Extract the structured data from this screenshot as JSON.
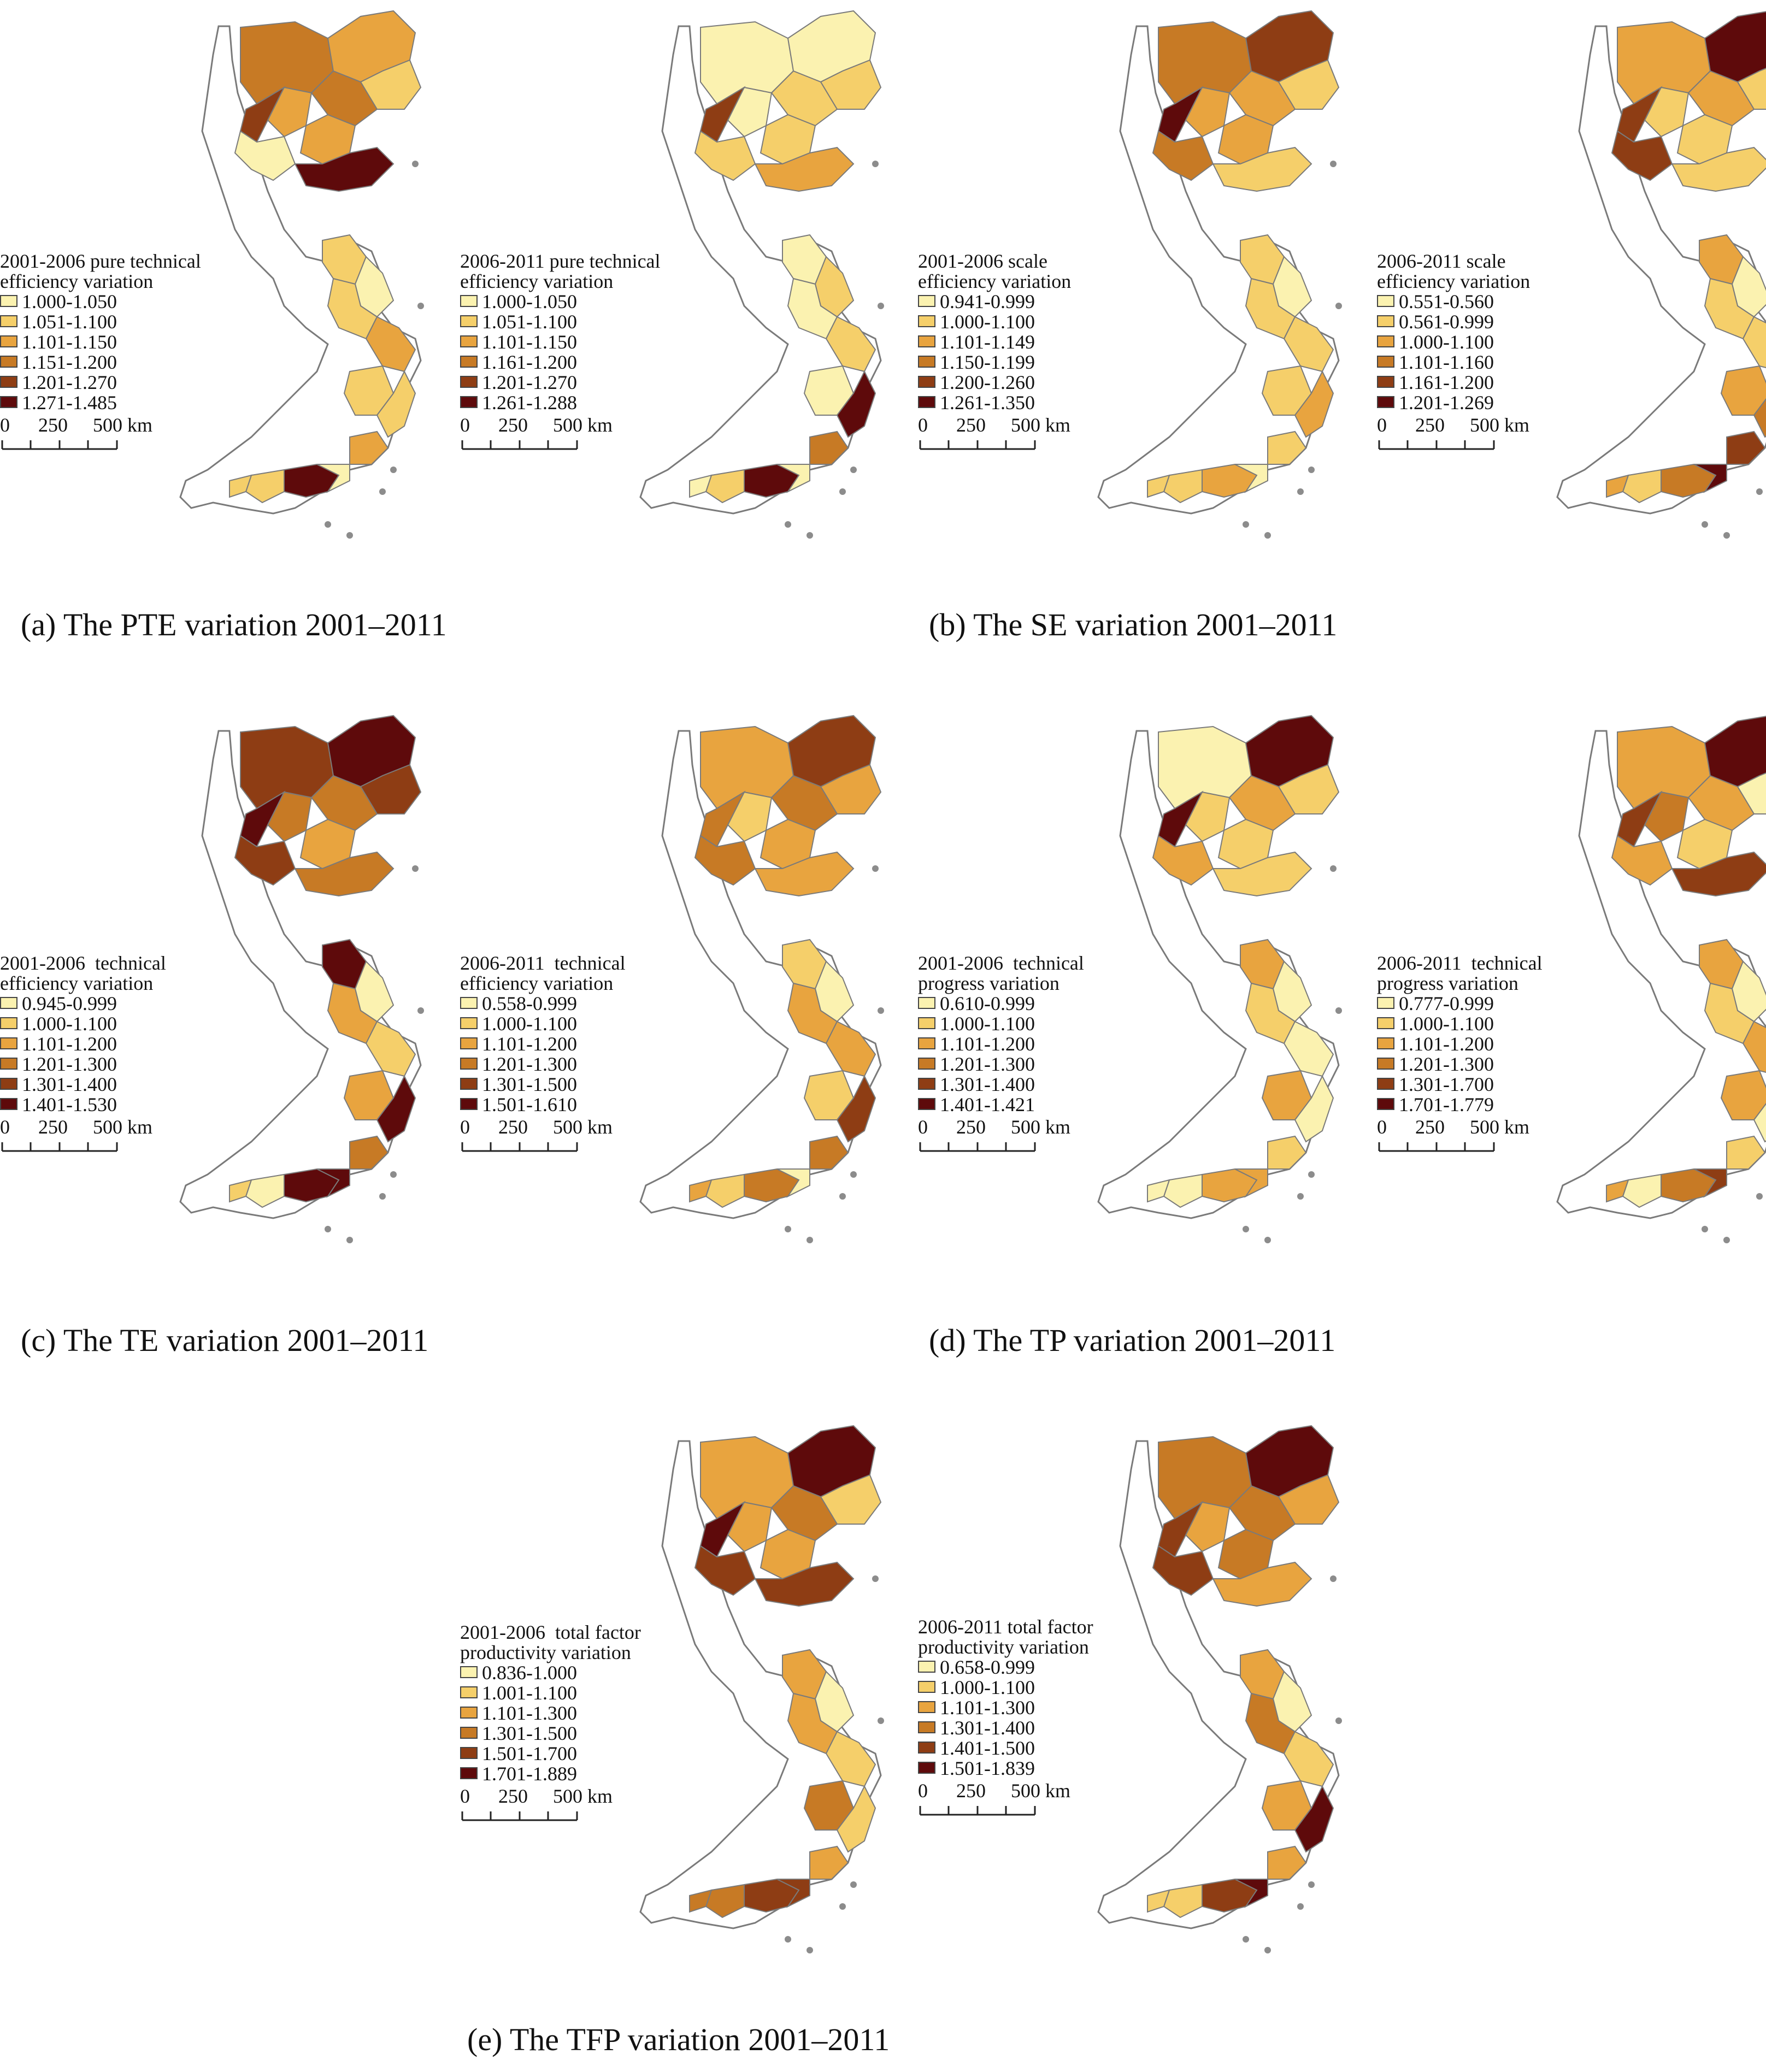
{
  "colors": {
    "c1": "#fbf2b0",
    "c2": "#f5cf6a",
    "c3": "#e8a43f",
    "c4": "#c77a25",
    "c5": "#8e3d14",
    "c6": "#5e0a0b",
    "outline": "#7a7a7a",
    "island": "#8c8c8c"
  },
  "scalebar": {
    "t0": "0",
    "t1": "250",
    "t2": "500 km"
  },
  "captions": {
    "a": "(a) The PTE variation 2001–2011",
    "b": "(b) The SE variation 2001–2011",
    "c": "(c) The TE variation 2001–2011",
    "d": "(d) The TP variation 2001–2011",
    "e": "(e) The TFP variation 2001–2011"
  },
  "maps": [
    {
      "title1": "2001-2006 pure technical",
      "title2": "efficiency variation",
      "classes": [
        "1.000-1.050",
        "1.051-1.100",
        "1.101-1.150",
        "1.151-1.200",
        "1.201-1.270",
        "1.271-1.485"
      ],
      "fill": [
        "c4",
        "c3",
        "c5",
        "c3",
        "c2",
        "c4",
        "c1",
        "c3",
        "c6",
        "c2",
        "c1",
        "c2",
        "c3",
        "c2",
        "c2",
        "c3",
        "c6",
        "c2",
        "c1",
        "c2"
      ]
    },
    {
      "title1": "2006-2011 pure technical",
      "title2": "efficiency variation",
      "classes": [
        "1.000-1.050",
        "1.051-1.100",
        "1.101-1.150",
        "1.161-1.200",
        "1.201-1.270",
        "1.261-1.288"
      ],
      "fill": [
        "c1",
        "c1",
        "c5",
        "c1",
        "c2",
        "c2",
        "c2",
        "c2",
        "c3",
        "c1",
        "c2",
        "c1",
        "c2",
        "c1",
        "c6",
        "c4",
        "c6",
        "c2",
        "c1",
        "c1"
      ]
    },
    {
      "title1": "2001-2006 scale",
      "title2": "efficiency variation",
      "classes": [
        "0.941-0.999",
        "1.000-1.100",
        "1.101-1.149",
        "1.150-1.199",
        "1.200-1.260",
        "1.261-1.350"
      ],
      "fill": [
        "c4",
        "c3",
        "c6",
        "c5",
        "c2",
        "c3",
        "c4",
        "c3",
        "c2",
        "c2",
        "c1",
        "c2",
        "c2",
        "c2",
        "c3",
        "c2",
        "c3",
        "c2",
        "c1",
        "c2"
      ]
    },
    {
      "title1": "2006-2011 scale",
      "title2": "efficiency variation",
      "classes": [
        "0.551-0.560",
        "0.561-0.999",
        "1.000-1.100",
        "1.101-1.160",
        "1.161-1.200",
        "1.201-1.269"
      ],
      "fill": [
        "c3",
        "c2",
        "c5",
        "c6",
        "c2",
        "c3",
        "c5",
        "c2",
        "c2",
        "c3",
        "c1",
        "c2",
        "c2",
        "c3",
        "c4",
        "c5",
        "c4",
        "c2",
        "c6",
        "c3"
      ]
    },
    {
      "title1": "2001-2006  technical",
      "title2": "efficiency variation",
      "classes": [
        "0.945-0.999",
        "1.000-1.100",
        "1.101-1.200",
        "1.201-1.300",
        "1.301-1.400",
        "1.401-1.530"
      ],
      "fill": [
        "c5",
        "c4",
        "c6",
        "c6",
        "c5",
        "c4",
        "c5",
        "c3",
        "c4",
        "c6",
        "c1",
        "c3",
        "c2",
        "c3",
        "c6",
        "c4",
        "c6",
        "c1",
        "c6",
        "c2"
      ]
    },
    {
      "title1": "2006-2011  technical",
      "title2": "efficiency variation",
      "classes": [
        "0.558-0.999",
        "1.000-1.100",
        "1.101-1.200",
        "1.201-1.300",
        "1.301-1.500",
        "1.501-1.610"
      ],
      "fill": [
        "c3",
        "c2",
        "c4",
        "c5",
        "c3",
        "c4",
        "c4",
        "c3",
        "c3",
        "c2",
        "c1",
        "c3",
        "c3",
        "c2",
        "c5",
        "c4",
        "c4",
        "c2",
        "c1",
        "c3"
      ]
    },
    {
      "title1": "2001-2006  technical",
      "title2": "progress variation",
      "classes": [
        "0.610-0.999",
        "1.000-1.100",
        "1.101-1.200",
        "1.201-1.300",
        "1.301-1.400",
        "1.401-1.421"
      ],
      "fill": [
        "c1",
        "c2",
        "c6",
        "c6",
        "c2",
        "c3",
        "c3",
        "c2",
        "c2",
        "c3",
        "c1",
        "c2",
        "c1",
        "c3",
        "c1",
        "c2",
        "c3",
        "c1",
        "c3",
        "c1"
      ]
    },
    {
      "title1": "2006-2011  technical",
      "title2": "progress variation",
      "classes": [
        "0.777-0.999",
        "1.000-1.100",
        "1.101-1.200",
        "1.201-1.300",
        "1.301-1.700",
        "1.701-1.779"
      ],
      "fill": [
        "c3",
        "c4",
        "c5",
        "c6",
        "c1",
        "c3",
        "c3",
        "c2",
        "c5",
        "c3",
        "c1",
        "c2",
        "c3",
        "c3",
        "c1",
        "c2",
        "c4",
        "c1",
        "c5",
        "c3"
      ]
    },
    {
      "title1": "2001-2006  total factor",
      "title2": "productivity variation",
      "classes": [
        "0.836-1.000",
        "1.001-1.100",
        "1.101-1.300",
        "1.301-1.500",
        "1.501-1.700",
        "1.701-1.889"
      ],
      "fill": [
        "c3",
        "c3",
        "c6",
        "c6",
        "c2",
        "c4",
        "c5",
        "c3",
        "c5",
        "c3",
        "c1",
        "c3",
        "c2",
        "c4",
        "c2",
        "c3",
        "c5",
        "c4",
        "c5",
        "c4"
      ]
    },
    {
      "title1": "2006-2011 total factor",
      "title2": "productivity variation",
      "classes": [
        "0.658-0.999",
        "1.000-1.100",
        "1.101-1.300",
        "1.301-1.400",
        "1.401-1.500",
        "1.501-1.839"
      ],
      "fill": [
        "c4",
        "c3",
        "c5",
        "c6",
        "c3",
        "c4",
        "c5",
        "c4",
        "c3",
        "c3",
        "c1",
        "c4",
        "c2",
        "c3",
        "c6",
        "c3",
        "c5",
        "c2",
        "c6",
        "c2"
      ]
    }
  ]
}
